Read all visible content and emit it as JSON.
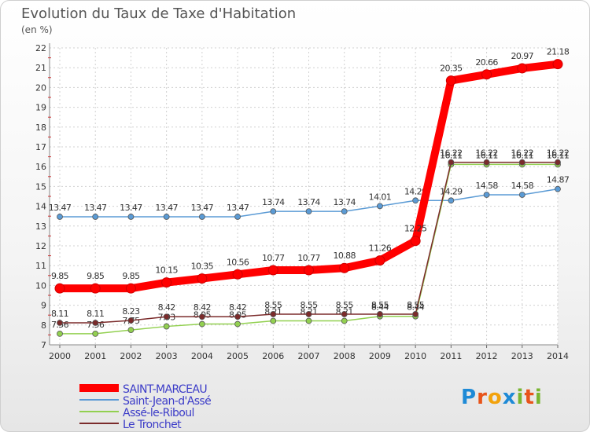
{
  "title": "Evolution du Taux de Taxe d'Habitation",
  "unit": "(en %)",
  "logo": {
    "letters": [
      "P",
      "r",
      "o",
      "x",
      "i",
      "t",
      "i"
    ],
    "colors": [
      "#1e8ad6",
      "#e8541a",
      "#f2a20c",
      "#1e8ad6",
      "#79b530",
      "#e8541a",
      "#79b530"
    ]
  },
  "chart_data": {
    "type": "line",
    "x": [
      "2000",
      "2001",
      "2002",
      "2003",
      "2004",
      "2005",
      "2006",
      "2007",
      "2008",
      "2009",
      "2010",
      "2011",
      "2012",
      "2013",
      "2014"
    ],
    "ylim": [
      7,
      22
    ],
    "yticks": [
      7,
      8,
      9,
      10,
      11,
      12,
      13,
      14,
      15,
      16,
      17,
      18,
      19,
      20,
      21,
      22
    ],
    "grid": true,
    "legend_position": "bottom-left",
    "series": [
      {
        "name": "SAINT-MARCEAU",
        "color": "#ff0000",
        "emphasis": true,
        "values": [
          9.85,
          9.85,
          9.85,
          10.15,
          10.35,
          10.56,
          10.77,
          10.77,
          10.88,
          11.26,
          12.25,
          20.35,
          20.66,
          20.97,
          21.18
        ],
        "labels": [
          "9.85",
          "9.85",
          "9.85",
          "10.15",
          "10.35",
          "10.56",
          "10.77",
          "10.77",
          "10.88",
          "11.26",
          "12.25",
          "20.35",
          "20.66",
          "20.97",
          "21.18"
        ]
      },
      {
        "name": "Saint-Jean-d'Assé",
        "color": "#5b9bd5",
        "values": [
          13.47,
          13.47,
          13.47,
          13.47,
          13.47,
          13.47,
          13.74,
          13.74,
          13.74,
          14.01,
          14.29,
          14.29,
          14.58,
          14.58,
          14.87
        ],
        "labels": [
          "13.47",
          "13.47",
          "13.47",
          "13.47",
          "13.47",
          "13.47",
          "13.74",
          "13.74",
          "13.74",
          "14.01",
          "14.29",
          "14.29",
          "14.58",
          "14.58",
          "14.87"
        ]
      },
      {
        "name": "Assé-le-Riboul",
        "color": "#92d050",
        "values": [
          7.56,
          7.56,
          7.75,
          7.93,
          8.05,
          8.05,
          8.21,
          8.21,
          8.21,
          8.44,
          8.44,
          16.11,
          16.11,
          16.11,
          16.11
        ],
        "labels": [
          "7.56",
          "7.56",
          "7.75",
          "7.93",
          "8.05",
          "8.05",
          "8.21",
          "8.21",
          "8.21",
          "8.44",
          "8.44",
          "16.11",
          "16.11",
          "16.11",
          "16.11"
        ]
      },
      {
        "name": "Le Tronchet",
        "color": "#7b2b2b",
        "values": [
          8.11,
          8.11,
          8.23,
          8.42,
          8.42,
          8.42,
          8.55,
          8.55,
          8.55,
          8.55,
          8.55,
          16.22,
          16.22,
          16.22,
          16.22
        ],
        "labels": [
          "8.11",
          "8.11",
          "8.23",
          "8.42",
          "8.42",
          "8.42",
          "8.55",
          "8.55",
          "8.55",
          "8.55",
          "8.55",
          "16.22",
          "16.22",
          "16.22",
          "16.22"
        ]
      }
    ]
  }
}
